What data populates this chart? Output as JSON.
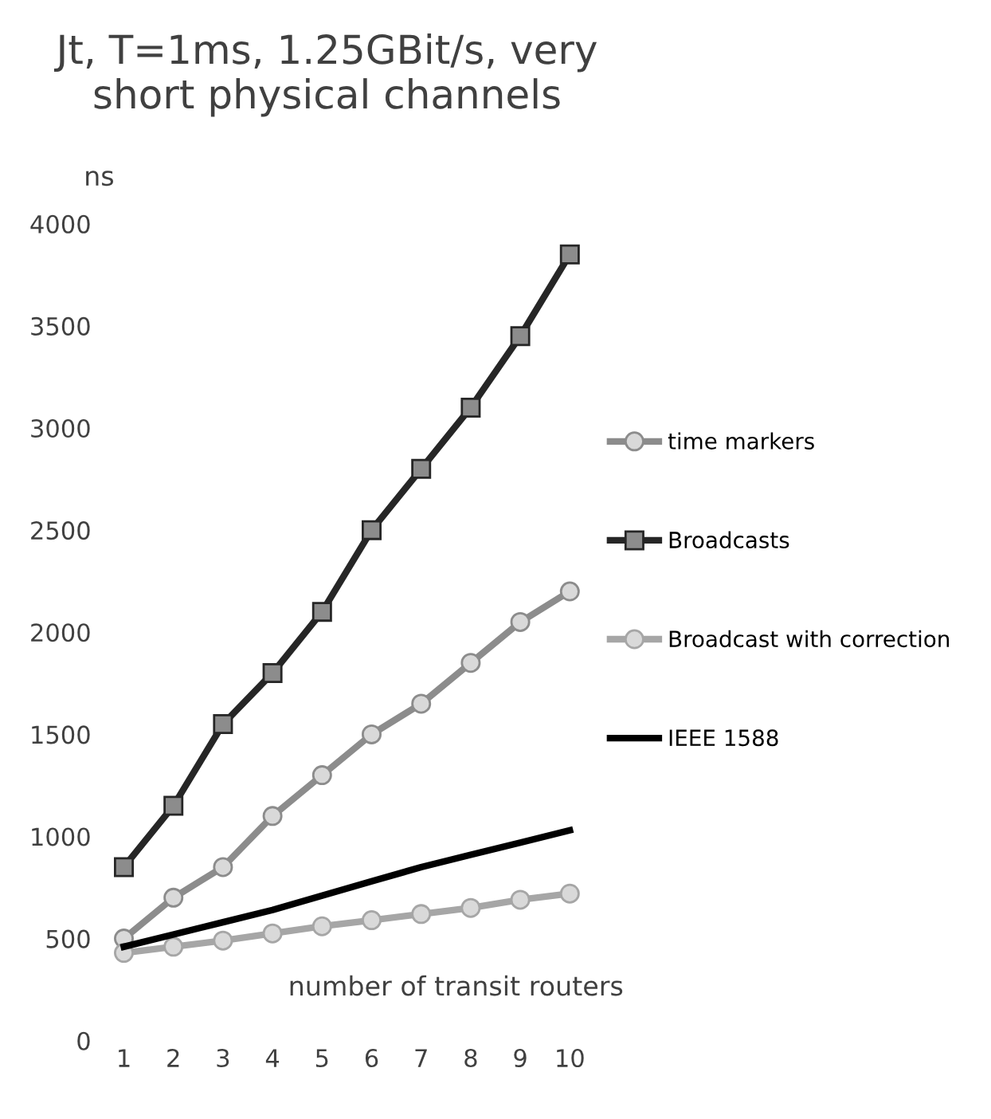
{
  "chart_data": {
    "type": "line",
    "title": "Jt, T=1ms, 1.25GBit/s, very short physical channels",
    "ylabel": "ns",
    "xlabel": "number of transit routers",
    "categories": [
      "1",
      "2",
      "3",
      "4",
      "5",
      "6",
      "7",
      "8",
      "9",
      "10"
    ],
    "series": [
      {
        "name": "time markers",
        "color": "#8c8c8c",
        "marker": "circle",
        "values": [
          500,
          700,
          850,
          1100,
          1300,
          1500,
          1650,
          1850,
          2050,
          2200
        ]
      },
      {
        "name": "Broadcasts",
        "color": "#262626",
        "marker": "square",
        "values": [
          850,
          1150,
          1550,
          1800,
          2100,
          2500,
          2800,
          3100,
          3450,
          3850
        ]
      },
      {
        "name": "Broadcast with correction",
        "color": "#a6a6a6",
        "marker": "circle",
        "values": [
          430,
          460,
          490,
          525,
          560,
          590,
          620,
          650,
          690,
          720
        ]
      },
      {
        "name": "IEEE 1588",
        "color": "#000000",
        "marker": "none",
        "values": [
          460,
          520,
          580,
          640,
          710,
          780,
          850,
          910,
          970,
          1030
        ]
      }
    ],
    "ylim": [
      0,
      4000
    ],
    "yticks": [
      0,
      500,
      1000,
      1500,
      2000,
      2500,
      3000,
      3500,
      4000
    ],
    "grid": false,
    "legend": "right",
    "line_style": "solid"
  }
}
